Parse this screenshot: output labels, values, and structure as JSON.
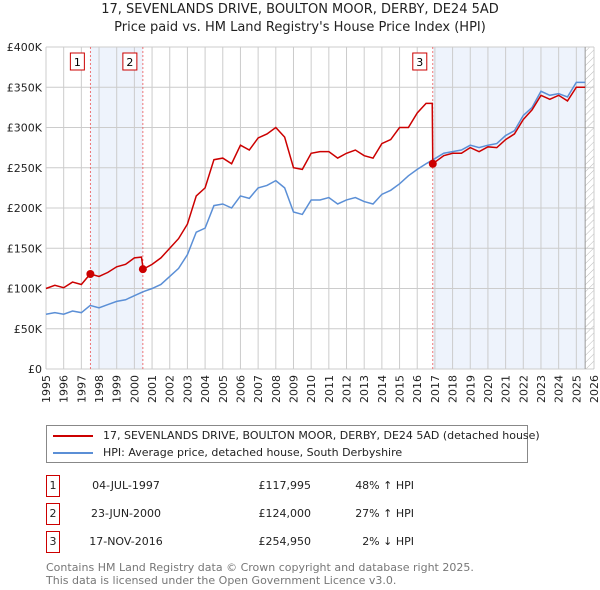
{
  "title": "17, SEVENLANDS DRIVE, BOULTON MOOR, DERBY, DE24 5AD",
  "subtitle": "Price paid vs. HM Land Registry's House Price Index (HPI)",
  "chart_data": {
    "type": "line",
    "title": "17, SEVENLANDS DRIVE, BOULTON MOOR, DERBY, DE24 5AD",
    "subtitle": "Price paid vs. HM Land Registry's House Price Index (HPI)",
    "xlim": [
      1995,
      2026
    ],
    "ylim": [
      0,
      400000
    ],
    "yticks": [
      {
        "v": 0,
        "label": "£0"
      },
      {
        "v": 50000,
        "label": "£50K"
      },
      {
        "v": 100000,
        "label": "£100K"
      },
      {
        "v": 150000,
        "label": "£150K"
      },
      {
        "v": 200000,
        "label": "£200K"
      },
      {
        "v": 250000,
        "label": "£250K"
      },
      {
        "v": 300000,
        "label": "£300K"
      },
      {
        "v": 350000,
        "label": "£350K"
      },
      {
        "v": 400000,
        "label": "£400K"
      }
    ],
    "xticks": [
      "1995",
      "1996",
      "1997",
      "1998",
      "1999",
      "2000",
      "2001",
      "2002",
      "2003",
      "2004",
      "2005",
      "2006",
      "2007",
      "2008",
      "2009",
      "2010",
      "2011",
      "2012",
      "2013",
      "2014",
      "2015",
      "2016",
      "2017",
      "2018",
      "2019",
      "2020",
      "2021",
      "2022",
      "2023",
      "2024",
      "2025",
      "2026"
    ],
    "grid": true,
    "colors": {
      "property": "#cc0000",
      "hpi": "#5b8fd6",
      "shade": "#eef3fc"
    },
    "shaded_ranges": [
      [
        1997.5,
        2000.48
      ],
      [
        2016.88,
        2025.5
      ]
    ],
    "hatched_from": 2025.5,
    "series": [
      {
        "name": "17, SEVENLANDS DRIVE, BOULTON MOOR, DERBY, DE24 5AD (detached house)",
        "color": "#cc0000",
        "x": [
          1995,
          1995.5,
          1996,
          1996.5,
          1997,
          1997.5,
          1998,
          1998.5,
          1999,
          1999.5,
          2000,
          2000.4,
          2000.5,
          2001,
          2001.5,
          2002,
          2002.5,
          2003,
          2003.5,
          2004,
          2004.5,
          2005,
          2005.5,
          2006,
          2006.5,
          2007,
          2007.5,
          2008,
          2008.5,
          2009,
          2009.5,
          2010,
          2010.5,
          2011,
          2011.5,
          2012,
          2012.5,
          2013,
          2013.5,
          2014,
          2014.5,
          2015,
          2015.5,
          2016,
          2016.5,
          2016.85,
          2016.88,
          2017.5,
          2018,
          2018.5,
          2019,
          2019.5,
          2020,
          2020.5,
          2021,
          2021.5,
          2022,
          2022.5,
          2023,
          2023.5,
          2024,
          2024.5,
          2025,
          2025.5
        ],
        "y": [
          100000,
          104000,
          101000,
          108000,
          105000,
          118000,
          115000,
          120000,
          127000,
          130000,
          138000,
          139000,
          124000,
          130000,
          138000,
          150000,
          162000,
          180000,
          215000,
          225000,
          260000,
          262000,
          255000,
          278000,
          272000,
          287000,
          292000,
          300000,
          288000,
          250000,
          248000,
          268000,
          270000,
          270000,
          262000,
          268000,
          272000,
          265000,
          262000,
          280000,
          285000,
          300000,
          300000,
          318000,
          330000,
          330000,
          255000,
          265000,
          268000,
          268000,
          275000,
          270000,
          276000,
          275000,
          285000,
          292000,
          310000,
          322000,
          340000,
          335000,
          340000,
          333000,
          350000,
          350000
        ]
      },
      {
        "name": "HPI: Average price, detached house, South Derbyshire",
        "color": "#5b8fd6",
        "x": [
          1995,
          1995.5,
          1996,
          1996.5,
          1997,
          1997.5,
          1998,
          1998.5,
          1999,
          1999.5,
          2000,
          2000.5,
          2001,
          2001.5,
          2002,
          2002.5,
          2003,
          2003.5,
          2004,
          2004.5,
          2005,
          2005.5,
          2006,
          2006.5,
          2007,
          2007.5,
          2008,
          2008.5,
          2009,
          2009.5,
          2010,
          2010.5,
          2011,
          2011.5,
          2012,
          2012.5,
          2013,
          2013.5,
          2014,
          2014.5,
          2015,
          2015.5,
          2016,
          2016.5,
          2016.9,
          2017.5,
          2018,
          2018.5,
          2019,
          2019.5,
          2020,
          2020.5,
          2021,
          2021.5,
          2022,
          2022.5,
          2023,
          2023.5,
          2024,
          2024.5,
          2025,
          2025.5
        ],
        "y": [
          68000,
          70000,
          68000,
          72000,
          70000,
          79000,
          76000,
          80000,
          84000,
          86000,
          91000,
          96000,
          100000,
          105000,
          115000,
          125000,
          142000,
          170000,
          175000,
          203000,
          205000,
          200000,
          215000,
          212000,
          225000,
          228000,
          234000,
          225000,
          195000,
          192000,
          210000,
          210000,
          213000,
          205000,
          210000,
          213000,
          208000,
          205000,
          217000,
          222000,
          230000,
          240000,
          248000,
          255000,
          260000,
          268000,
          270000,
          272000,
          278000,
          275000,
          278000,
          280000,
          290000,
          296000,
          315000,
          325000,
          345000,
          340000,
          342000,
          338000,
          356000,
          356000
        ]
      }
    ],
    "sales": [
      {
        "n": "1",
        "x": 1997.51,
        "y": 117995,
        "date": "04-JUL-1997",
        "price": "£117,995",
        "hpi": "48% ↑ HPI"
      },
      {
        "n": "2",
        "x": 2000.48,
        "y": 124000,
        "date": "23-JUN-2000",
        "price": "£124,000",
        "hpi": "27% ↑ HPI"
      },
      {
        "n": "3",
        "x": 2016.88,
        "y": 254950,
        "date": "17-NOV-2016",
        "price": "£254,950",
        "hpi": "2% ↓ HPI"
      }
    ],
    "legend": "bottom"
  },
  "footer": {
    "line1": "Contains HM Land Registry data © Crown copyright and database right 2025.",
    "line2": "This data is licensed under the Open Government Licence v3.0."
  }
}
